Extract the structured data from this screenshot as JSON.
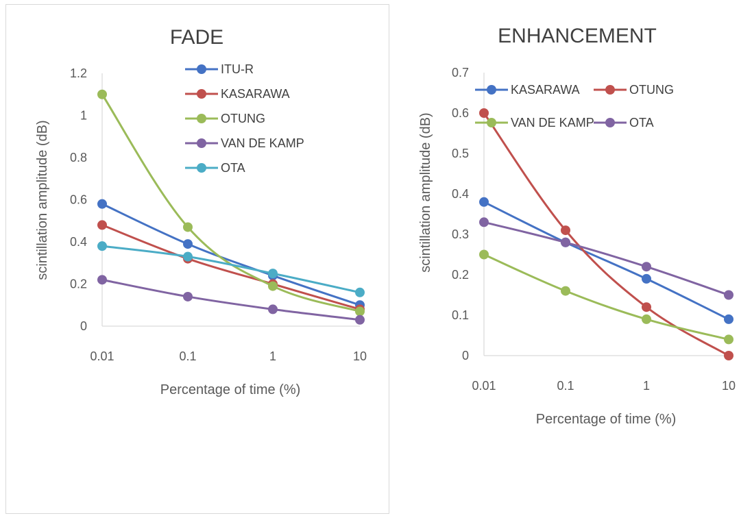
{
  "chart_data": [
    {
      "type": "line",
      "title": "FADE",
      "xlabel": "Percentage of time (%)",
      "ylabel": "scintillation amplitude (dB)",
      "x_scale": "log",
      "categories": [
        "0.01",
        "0.1",
        "1",
        "10"
      ],
      "ylim": [
        0,
        1.2
      ],
      "yticks": [
        "0",
        "0.2",
        "0.4",
        "0.6",
        "0.8",
        "1",
        "1.2"
      ],
      "legend_position": "top-right",
      "series": [
        {
          "name": "ITU-R",
          "color": "#4472c4",
          "values": [
            0.58,
            0.39,
            0.24,
            0.1
          ]
        },
        {
          "name": "KASARAWA",
          "color": "#c0504d",
          "values": [
            0.48,
            0.32,
            0.2,
            0.08
          ]
        },
        {
          "name": "OTUNG",
          "color": "#9bbb59",
          "values": [
            1.1,
            0.47,
            0.19,
            0.07
          ]
        },
        {
          "name": "VAN DE KAMP",
          "color": "#8064a2",
          "values": [
            0.22,
            0.14,
            0.08,
            0.03
          ]
        },
        {
          "name": "OTA",
          "color": "#4bacc6",
          "values": [
            0.38,
            0.33,
            0.25,
            0.16
          ]
        }
      ]
    },
    {
      "type": "line",
      "title": "ENHANCEMENT",
      "xlabel": "Percentage of time (%)",
      "ylabel": "scintillation amplitude (dB)",
      "x_scale": "log",
      "categories": [
        "0.01",
        "0.1",
        "1",
        "10"
      ],
      "ylim": [
        0,
        0.7
      ],
      "yticks": [
        "0",
        "0.1",
        "0.2",
        "0.3",
        "0.4",
        "0.5",
        "0.6",
        "0.7"
      ],
      "legend_position": "top",
      "series": [
        {
          "name": "KASARAWA",
          "color": "#4472c4",
          "values": [
            0.38,
            0.28,
            0.19,
            0.09
          ]
        },
        {
          "name": "OTUNG",
          "color": "#c0504d",
          "values": [
            0.6,
            0.31,
            0.12,
            0.0
          ]
        },
        {
          "name": "VAN DE KAMP",
          "color": "#9bbb59",
          "values": [
            0.25,
            0.16,
            0.09,
            0.04
          ]
        },
        {
          "name": "OTA",
          "color": "#8064a2",
          "values": [
            0.33,
            0.28,
            0.22,
            0.15
          ]
        }
      ]
    }
  ]
}
